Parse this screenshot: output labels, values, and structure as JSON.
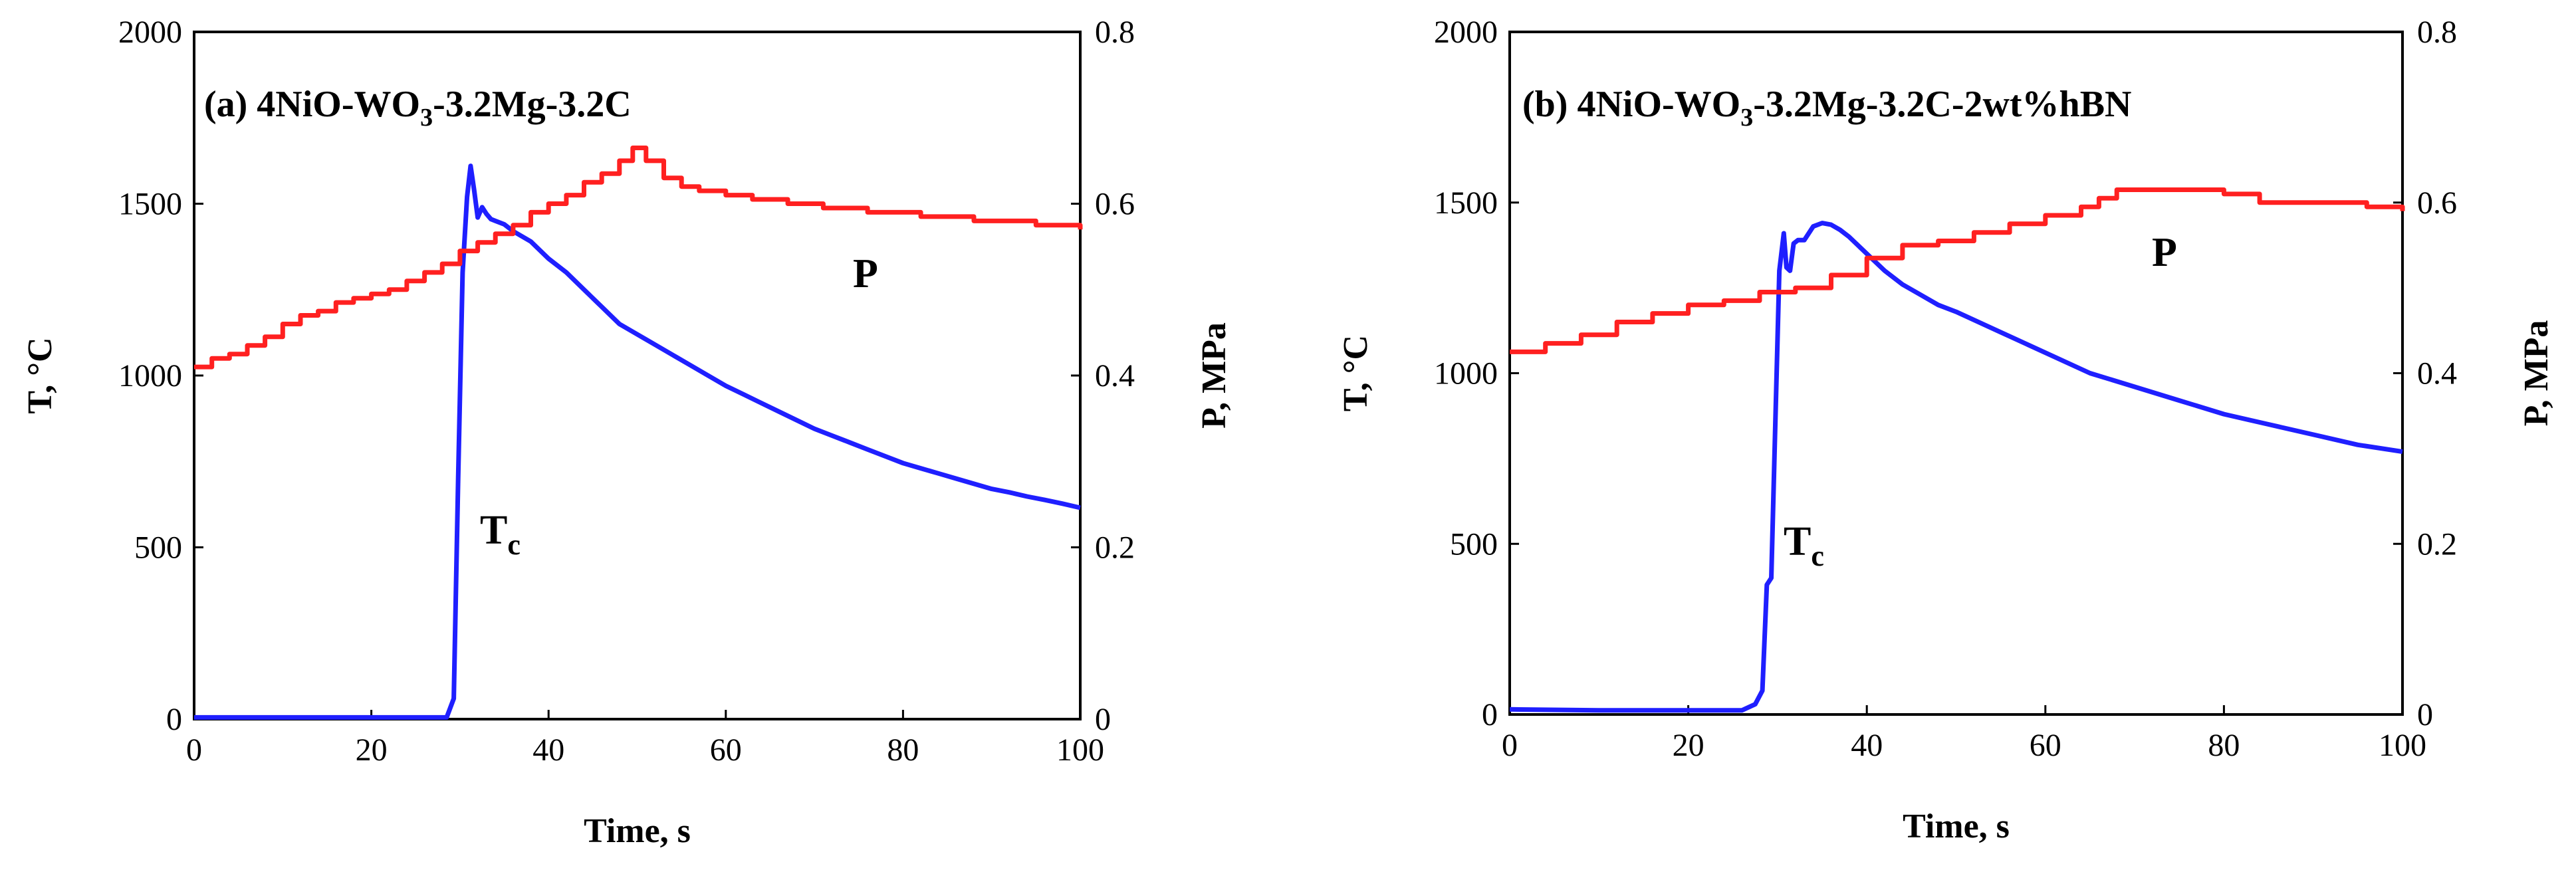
{
  "chart_data": [
    {
      "type": "line",
      "panel": "a",
      "title_main": "(a) 4NiO-WO",
      "title_sub": "3",
      "title_rest": "-3.2Mg-3.2C",
      "xlabel": "Time, s",
      "ylabel": "T, °C",
      "y2label": "P, MPa",
      "xlim": [
        0,
        100
      ],
      "ylim": [
        0,
        2000
      ],
      "y2lim": [
        0,
        0.8
      ],
      "x_ticks": [
        "0",
        "20",
        "40",
        "60",
        "80",
        "100"
      ],
      "y_ticks": [
        "0",
        "500",
        "1000",
        "1500",
        "2000"
      ],
      "y2_ticks": [
        "0",
        "0.2",
        "0.4",
        "0.6",
        "0.8"
      ],
      "series": [
        {
          "name": "T_c",
          "label_main": "T",
          "label_sub": "c",
          "axis": "left",
          "color": "#1f1fff",
          "x": [
            0,
            10,
            20,
            28.5,
            29.3,
            29.8,
            30.3,
            30.8,
            31.2,
            31.6,
            32.0,
            32.5,
            33.0,
            33.5,
            34.0,
            35,
            36,
            38,
            40,
            42,
            44,
            46,
            48,
            50,
            52,
            54,
            56,
            58,
            60,
            62,
            64,
            66,
            68,
            70,
            72,
            74,
            76,
            78,
            80,
            82,
            84,
            86,
            88,
            90,
            92,
            94,
            96,
            98,
            100
          ],
          "y": [
            5,
            5,
            5,
            5,
            60,
            700,
            1300,
            1520,
            1610,
            1540,
            1460,
            1490,
            1470,
            1455,
            1450,
            1440,
            1420,
            1390,
            1340,
            1300,
            1250,
            1200,
            1150,
            1120,
            1090,
            1060,
            1030,
            1000,
            970,
            945,
            920,
            895,
            870,
            845,
            825,
            805,
            785,
            765,
            745,
            730,
            715,
            700,
            685,
            670,
            660,
            648,
            638,
            627,
            615
          ]
        },
        {
          "name": "P",
          "label_main": "P",
          "axis": "right",
          "color": "#ff2020",
          "x": [
            0,
            2,
            4,
            6,
            8,
            10,
            12,
            14,
            16,
            18,
            20,
            22,
            24,
            26,
            28,
            30,
            32,
            34,
            36,
            38,
            40,
            42,
            44,
            46,
            48,
            49.5,
            51,
            53,
            55,
            57,
            60,
            63,
            67,
            71,
            76,
            82,
            88,
            95,
            100
          ],
          "y": [
            0.41,
            0.42,
            0.425,
            0.435,
            0.445,
            0.46,
            0.47,
            0.475,
            0.485,
            0.49,
            0.495,
            0.5,
            0.51,
            0.52,
            0.53,
            0.545,
            0.555,
            0.565,
            0.575,
            0.59,
            0.6,
            0.61,
            0.625,
            0.635,
            0.65,
            0.665,
            0.65,
            0.63,
            0.62,
            0.615,
            0.61,
            0.605,
            0.6,
            0.595,
            0.59,
            0.585,
            0.58,
            0.575,
            0.57
          ]
        }
      ]
    },
    {
      "type": "line",
      "panel": "b",
      "title_main": "(b) 4NiO-WO",
      "title_sub": "3",
      "title_rest": "-3.2Mg-3.2C-2wt%hBN",
      "xlabel": "Time, s",
      "ylabel": "T, °C",
      "y2label": "P, MPa",
      "xlim": [
        0,
        100
      ],
      "ylim": [
        0,
        2000
      ],
      "y2lim": [
        0,
        0.8
      ],
      "x_ticks": [
        "0",
        "20",
        "40",
        "60",
        "80",
        "100"
      ],
      "y_ticks": [
        "0",
        "500",
        "1000",
        "1500",
        "2000"
      ],
      "y2_ticks": [
        "0",
        "0.2",
        "0.4",
        "0.6",
        "0.8"
      ],
      "series": [
        {
          "name": "T_c",
          "label_main": "T",
          "label_sub": "c",
          "axis": "left",
          "color": "#1f1fff",
          "x": [
            0,
            10,
            20,
            26,
            27.5,
            28.3,
            28.8,
            29.3,
            29.8,
            30.2,
            30.7,
            31.0,
            31.4,
            31.8,
            32.3,
            33.0,
            34.0,
            35.0,
            36.0,
            37.0,
            38.0,
            40,
            42,
            44,
            46,
            48,
            50,
            55,
            60,
            65,
            70,
            75,
            80,
            85,
            90,
            95,
            100
          ],
          "y": [
            15,
            12,
            12,
            12,
            30,
            70,
            380,
            400,
            900,
            1300,
            1410,
            1310,
            1300,
            1380,
            1390,
            1390,
            1430,
            1440,
            1435,
            1420,
            1400,
            1350,
            1300,
            1260,
            1230,
            1200,
            1180,
            1120,
            1060,
            1000,
            960,
            920,
            880,
            850,
            820,
            790,
            770
          ]
        },
        {
          "name": "P",
          "label_main": "P",
          "axis": "right",
          "color": "#ff2020",
          "x": [
            0,
            4,
            8,
            12,
            16,
            20,
            24,
            28,
            32,
            36,
            40,
            44,
            48,
            52,
            56,
            60,
            64,
            66,
            68,
            72,
            76,
            80,
            84,
            88,
            92,
            96,
            100
          ],
          "y": [
            0.425,
            0.435,
            0.445,
            0.46,
            0.47,
            0.48,
            0.485,
            0.495,
            0.5,
            0.515,
            0.535,
            0.55,
            0.555,
            0.565,
            0.575,
            0.585,
            0.595,
            0.605,
            0.615,
            0.615,
            0.615,
            0.61,
            0.6,
            0.6,
            0.6,
            0.595,
            0.59
          ]
        }
      ]
    }
  ]
}
